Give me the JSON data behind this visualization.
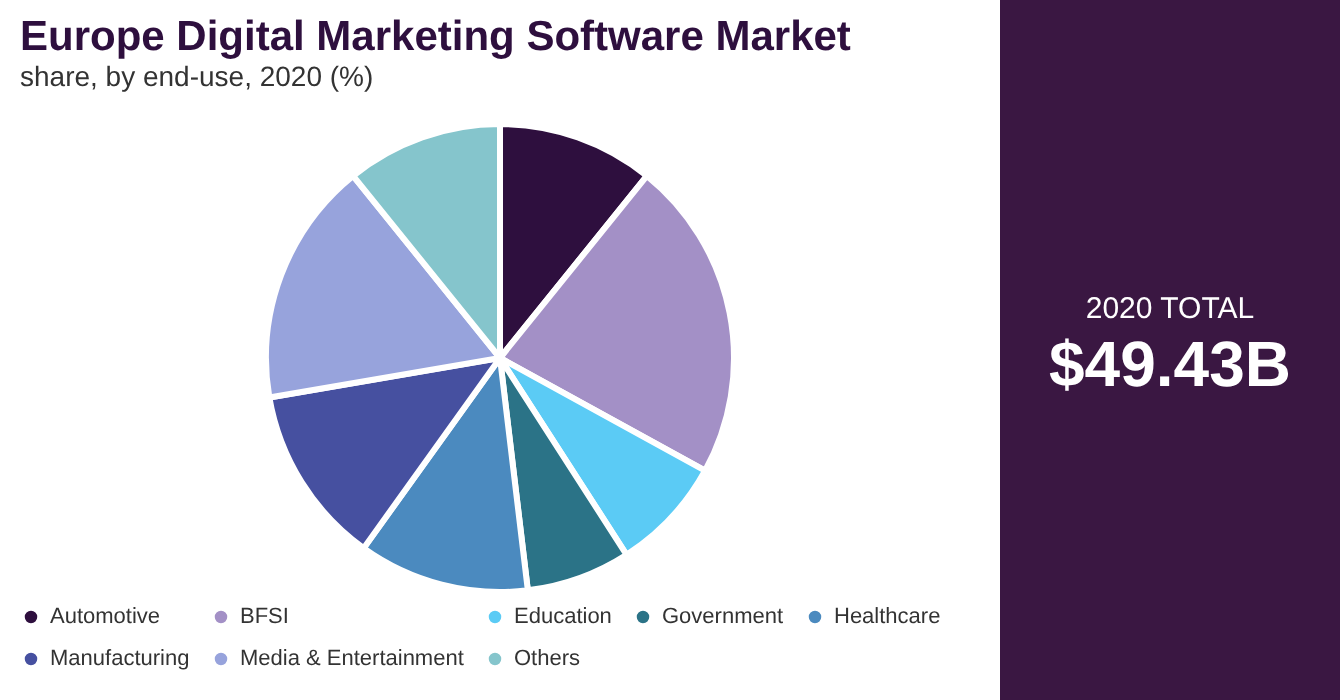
{
  "chart_data": {
    "type": "pie",
    "title": "Europe Digital Marketing Software Market",
    "subtitle": "share, by end-use, 2020 (%)",
    "categories": [
      "Automotive",
      "BFSI",
      "Education",
      "Government",
      "Healthcare",
      "Manufacturing",
      "Media & Entertainment",
      "Others"
    ],
    "values": [
      10.8,
      22.2,
      7.9,
      7.2,
      11.8,
      12.4,
      16.9,
      10.8
    ],
    "colors": [
      "#2e0f3e",
      "#a390c6",
      "#5bcbf5",
      "#2b7387",
      "#4b8abf",
      "#4650a0",
      "#97a3dc",
      "#85c5cc"
    ],
    "legend": "bottom",
    "annotations": [
      "2020 TOTAL",
      "$49.43B"
    ]
  }
}
